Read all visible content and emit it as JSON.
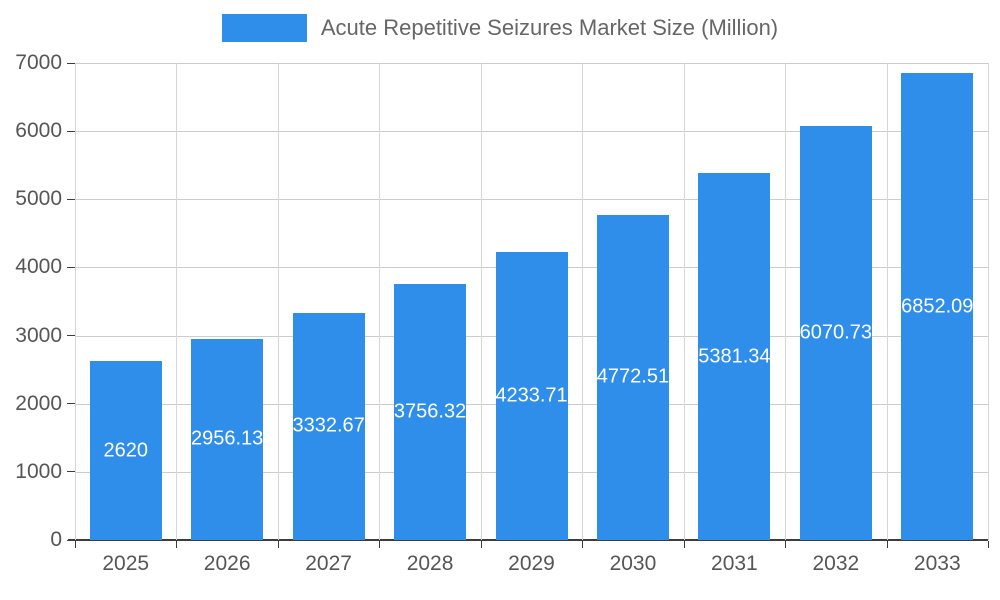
{
  "chart_data": {
    "type": "bar",
    "title": "Acute Repetitive Seizures Market Size (Million)",
    "categories": [
      "2025",
      "2026",
      "2027",
      "2028",
      "2029",
      "2030",
      "2031",
      "2032",
      "2033"
    ],
    "values": [
      2620,
      2956.13,
      3332.67,
      3756.32,
      4233.71,
      4772.51,
      5381.34,
      6070.73,
      6852.09
    ],
    "labels": [
      "2620",
      "2956.13",
      "3332.67",
      "3756.32",
      "4233.71",
      "4772.51",
      "5381.34",
      "6070.73",
      "6852.09"
    ],
    "xlabel": "",
    "ylabel": "",
    "ylim": [
      0,
      7000
    ],
    "yticks": [
      0,
      1000,
      2000,
      3000,
      4000,
      5000,
      6000,
      7000
    ],
    "bar_color": "#2e8eea",
    "grid": true,
    "legend_position": "top"
  }
}
